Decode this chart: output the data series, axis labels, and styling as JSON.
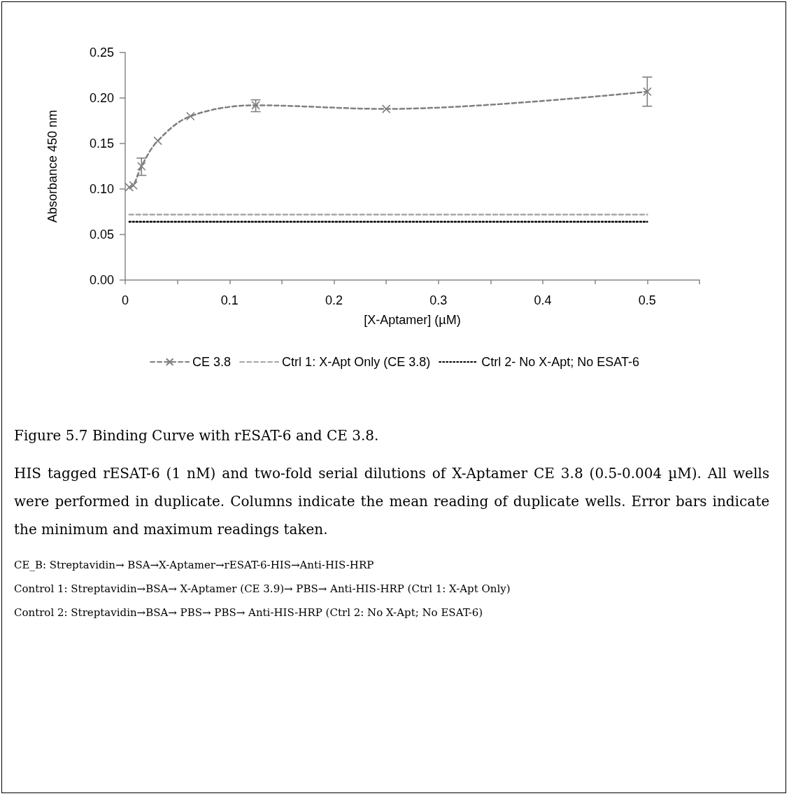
{
  "chart_data": {
    "type": "line",
    "xlabel": "[X-Aptamer] (µM)",
    "ylabel": "Absorbance 450 nm",
    "xlim": [
      0,
      0.55
    ],
    "xticks": [
      0,
      {
        "value": 0.05,
        "label": null
      },
      0.1,
      {
        "value": 0.15,
        "label": null
      },
      0.2,
      {
        "value": 0.25,
        "label": null
      },
      0.3,
      {
        "value": 0.35,
        "label": null
      },
      0.4,
      {
        "value": 0.45,
        "label": null
      },
      0.5,
      {
        "value": 0.55,
        "label": null
      }
    ],
    "ylim": [
      0,
      0.25
    ],
    "yticks": [
      {
        "value": 0,
        "label": "0.00"
      },
      0.05,
      {
        "value": 0.1,
        "label": "0.10"
      },
      0.15,
      {
        "value": 0.2,
        "label": "0.20"
      },
      0.25
    ],
    "grid": false,
    "legend": "bottom",
    "series": [
      {
        "name": "CE 3.8",
        "color": "#7f7f7f",
        "x": [
          0.0039,
          0.0078,
          0.0156,
          0.03125,
          0.0625,
          0.125,
          0.25,
          0.5
        ],
        "values": [
          0.102,
          0.104,
          0.125,
          0.153,
          0.18,
          0.192,
          0.188,
          0.207
        ],
        "errors": [
          null,
          null,
          [
            0.115,
            0.134
          ],
          null,
          null,
          [
            0.185,
            0.198
          ],
          null,
          [
            0.191,
            0.223
          ]
        ],
        "marker": "cross",
        "line_style": "dashed"
      },
      {
        "name": "Ctrl 1: X-Apt Only (CE 3.8)",
        "color": "#a6a6a6",
        "x": [
          0.0039,
          0.5
        ],
        "values": [
          0.072,
          0.072
        ],
        "marker": "none",
        "line_style": "dashed"
      },
      {
        "name": "Ctrl 2- No X-Apt; No ESAT-6",
        "color": "#000000",
        "x": [
          0.0039,
          0.5
        ],
        "values": [
          0.064,
          0.064
        ],
        "marker": "none",
        "line_style": "dotted"
      }
    ],
    "annotations": [
      "Figure 5.7 Binding Curve with rESAT-6 and CE 3.8.",
      "HIS tagged rESAT-6 (1 nM) and two-fold serial dilutions of X-Aptamer CE 3.8 (0.5-0.004 µM). All wells were performed in duplicate.  Columns indicate the mean reading of duplicate wells.  Error bars indicate the minimum and maximum readings taken.",
      "CE_B: Streptavidin→ BSA→X-Aptamer→rESAT-6-HIS→Anti-HIS-HRP",
      "Control 1: Streptavidin→BSA→ X-Aptamer (CE 3.9)→ PBS→ Anti-HIS-HRP (Ctrl 1: X-Apt Only)",
      "Control 2: Streptavidin→BSA→ PBS→ PBS→ Anti-HIS-HRP (Ctrl 2: No X-Apt; No ESAT-6)"
    ]
  }
}
